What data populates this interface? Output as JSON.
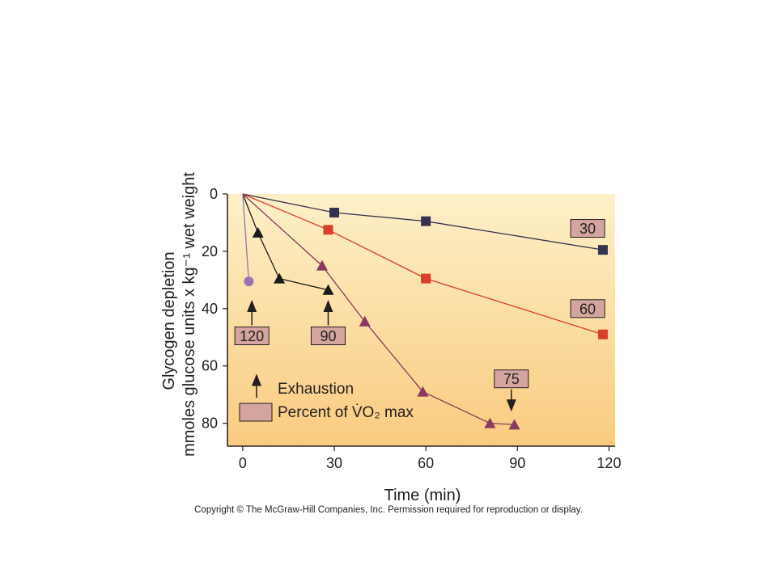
{
  "chart_data": {
    "type": "line",
    "xlabel": "Time (min)",
    "ylabel_line1": "Glycogen depletion",
    "ylabel_line2": "mmoles glucose units x kg⁻¹ wet weight",
    "xlim": [
      -5,
      122
    ],
    "ylim": [
      0,
      88
    ],
    "y_inverted": true,
    "x_ticks": [
      0,
      30,
      60,
      90,
      120
    ],
    "y_ticks": [
      0,
      20,
      40,
      60,
      80
    ],
    "background_gradient": [
      "#fdf0c8",
      "#f9cb80"
    ],
    "series": [
      {
        "label": "30",
        "marker": "square",
        "color": "#34324f",
        "x": [
          0,
          30,
          60,
          118
        ],
        "y": [
          0,
          6.5,
          9.5,
          19.5
        ],
        "label_box_at": [
          113,
          12
        ]
      },
      {
        "label": "60",
        "marker": "square",
        "color": "#d9402b",
        "x": [
          0,
          28,
          60,
          118
        ],
        "y": [
          0,
          12.5,
          29.5,
          49
        ],
        "label_box_at": [
          113,
          40
        ]
      },
      {
        "label": "75",
        "marker": "triangle",
        "color": "#8a3a5e",
        "x": [
          0,
          26,
          40,
          59,
          81,
          89
        ],
        "y": [
          0,
          25,
          44.5,
          69,
          80,
          80.5
        ],
        "label_box_at": [
          88,
          64.5
        ],
        "exhaustion_arrow": true
      },
      {
        "label": "90",
        "marker": "triangle",
        "color": "#1a1a1a",
        "x": [
          0,
          5,
          12,
          28
        ],
        "y": [
          0,
          13.5,
          29.5,
          33.5
        ],
        "label_box_at": [
          28,
          49.5
        ],
        "exhaustion_arrow": true
      },
      {
        "label": "120",
        "marker": "circle",
        "color": "#9b72ad",
        "x": [
          0,
          2
        ],
        "y": [
          0,
          30.5
        ],
        "label_box_at": [
          3,
          49.5
        ],
        "exhaustion_arrow": true
      }
    ],
    "legend": {
      "exhaustion": "Exhaustion",
      "percent": "Percent of V̇O₂ max"
    }
  },
  "copyright": "Copyright © The McGraw-Hill Companies, Inc. Permission required for reproduction or display."
}
